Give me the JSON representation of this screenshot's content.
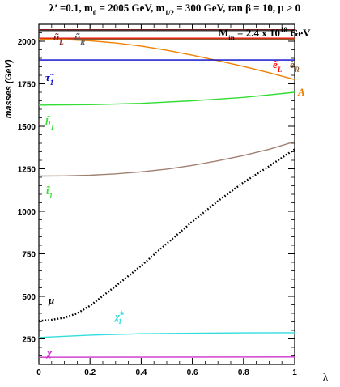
{
  "chart_data": {
    "type": "line",
    "title": "λ’ =0.1, m0 = 2005 GeV, m1/2 = 300 GeV, tan β = 10, μ > 0",
    "inset": "Min = 2.4 x 10^18 GeV",
    "xlabel": "λ",
    "ylabel": "masses (GeV)",
    "xlim": [
      0,
      1
    ],
    "ylim": [
      100,
      2100
    ],
    "x_ticks": [
      "0",
      "0.2",
      "0.4",
      "0.6",
      "0.8",
      "1"
    ],
    "y_ticks": [
      "250",
      "500",
      "750",
      "1000",
      "1250",
      "1500",
      "1750",
      "2000"
    ],
    "series": [
      {
        "name": "ũL",
        "color": "#7a1f1f",
        "style": "solid",
        "x": [
          0,
          1
        ],
        "y": [
          2068,
          2068
        ]
      },
      {
        "name": "ũR",
        "color": "#333333",
        "style": "solid",
        "x": [
          0,
          1
        ],
        "y": [
          2063,
          2063
        ]
      },
      {
        "name": "ẽL",
        "color": "#ff0000",
        "style": "solid",
        "x": [
          0,
          1
        ],
        "y": [
          2018,
          2018
        ]
      },
      {
        "name": "ẽR",
        "color": "#8b5a2b",
        "style": "solid",
        "x": [
          0,
          1
        ],
        "y": [
          2013,
          2013
        ]
      },
      {
        "name": "A",
        "color": "#f08000",
        "style": "solid",
        "x": [
          0,
          0.1,
          0.2,
          0.3,
          0.4,
          0.5,
          0.6,
          0.7,
          0.8,
          0.9,
          1.0
        ],
        "y": [
          2012,
          2010,
          2003,
          1990,
          1972,
          1947,
          1918,
          1886,
          1852,
          1815,
          1775
        ]
      },
      {
        "name": "τ̃1",
        "color": "#0000cc",
        "style": "solid",
        "x": [
          0,
          1
        ],
        "y": [
          1890,
          1890
        ]
      },
      {
        "name": "b̃1",
        "color": "#33dd33",
        "style": "solid",
        "x": [
          0,
          0.2,
          0.4,
          0.6,
          0.8,
          1.0
        ],
        "y": [
          1625,
          1627,
          1635,
          1650,
          1670,
          1700
        ]
      },
      {
        "name": "t̃1",
        "color": "#a08070",
        "style": "solid",
        "x": [
          0,
          0.1,
          0.2,
          0.3,
          0.4,
          0.5,
          0.6,
          0.7,
          0.8,
          0.9,
          1.0
        ],
        "y": [
          1207,
          1208,
          1212,
          1220,
          1232,
          1248,
          1270,
          1297,
          1328,
          1365,
          1410
        ]
      },
      {
        "name": "μ",
        "color": "#000000",
        "style": "dotted",
        "x": [
          0,
          0.05,
          0.1,
          0.15,
          0.2,
          0.3,
          0.4,
          0.5,
          0.6,
          0.7,
          0.8,
          0.9,
          1.0
        ],
        "y": [
          355,
          362,
          375,
          400,
          445,
          560,
          680,
          810,
          940,
          1060,
          1170,
          1265,
          1365
        ]
      },
      {
        "name": "χ̃±1",
        "color": "#33dddd",
        "style": "solid",
        "x": [
          0,
          0.2,
          0.4,
          0.6,
          0.8,
          1.0
        ],
        "y": [
          258,
          272,
          280,
          283,
          285,
          286
        ]
      },
      {
        "name": "χ",
        "color": "#cc33cc",
        "style": "solid",
        "x": [
          0,
          1
        ],
        "y": [
          142,
          144
        ]
      }
    ],
    "curve_labels": [
      {
        "text": "ũ",
        "sub": "L",
        "color": "#7a1f1f"
      },
      {
        "text": "ũ",
        "sub": "R",
        "color": "#555555"
      },
      {
        "text": "ẽ",
        "sub": "L",
        "color": "#ff0000"
      },
      {
        "text": "ẽ",
        "sub": "R",
        "color": "#8b5a2b"
      },
      {
        "text": "A",
        "sub": "",
        "color": "#f08000"
      },
      {
        "text": "τ̃",
        "sub": "1",
        "color": "#0000cc"
      },
      {
        "text": "b̃",
        "sub": "1",
        "color": "#33dd33"
      },
      {
        "text": "t̃",
        "sub": "1",
        "color": "#33dd33"
      },
      {
        "text": "μ",
        "sub": "",
        "color": "#000000"
      },
      {
        "text": "χ̃",
        "sub": "±1",
        "color": "#33dddd"
      },
      {
        "text": "χ",
        "sub": "",
        "color": "#cc33cc"
      }
    ]
  }
}
